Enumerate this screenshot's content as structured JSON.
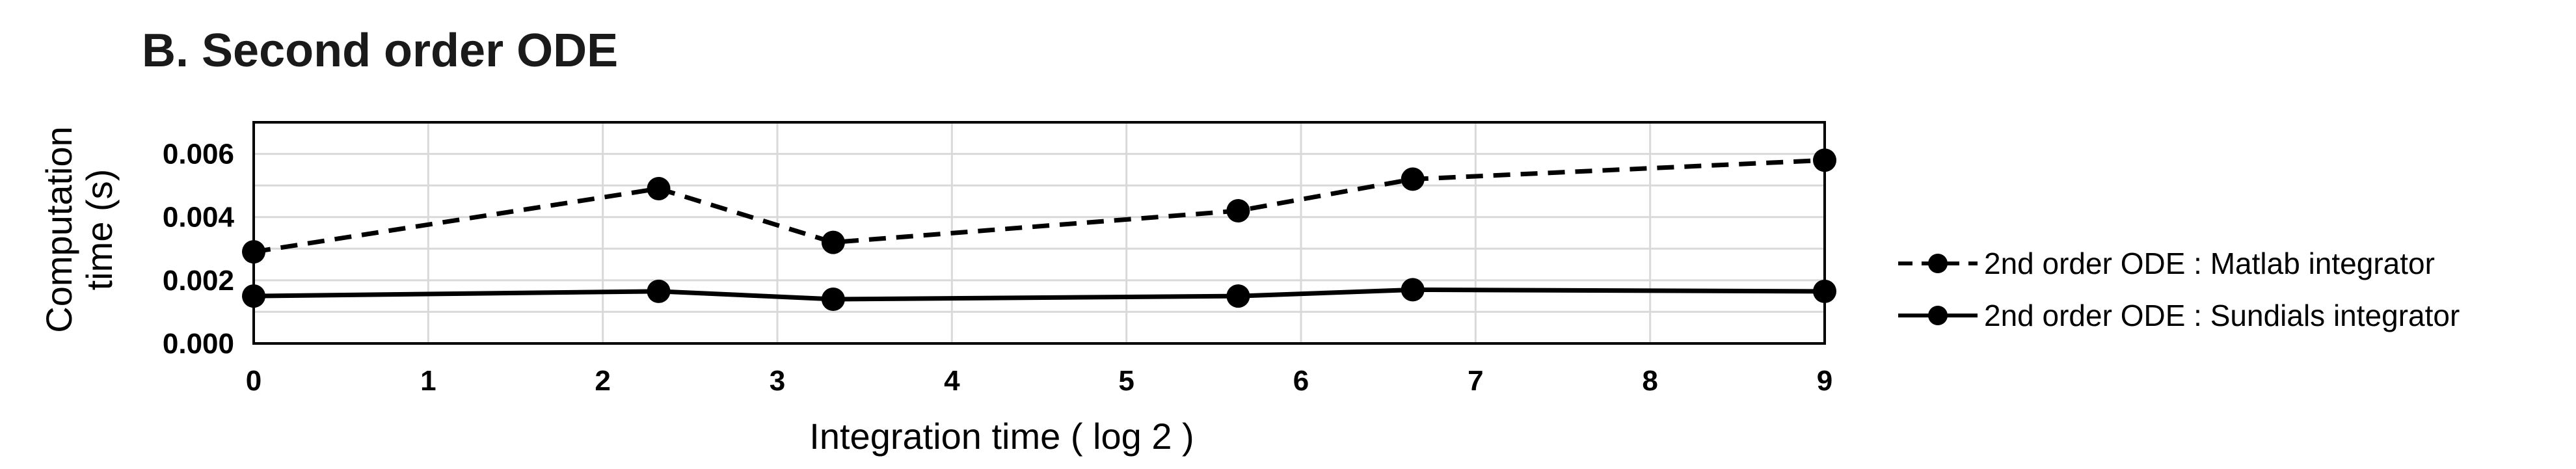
{
  "chart_data": {
    "type": "line",
    "title": "B. Second order ODE",
    "xlabel": "Integration time ( log 2 )",
    "ylabel_lines": [
      "Computation",
      "time (s)"
    ],
    "xlim": [
      0,
      9
    ],
    "ylim": [
      0,
      0.007
    ],
    "x_ticks": [
      "0",
      "1",
      "2",
      "3",
      "4",
      "5",
      "6",
      "7",
      "8",
      "9"
    ],
    "y_ticks": [
      {
        "value": 0,
        "label": "0.000"
      },
      {
        "value": 0.002,
        "label": "0.002"
      },
      {
        "value": 0.004,
        "label": "0.004"
      },
      {
        "value": 0.006,
        "label": "0.006"
      }
    ],
    "grid": true,
    "legend_position": "right",
    "series": [
      {
        "name": "2nd order ODE : Matlab integrator",
        "style": "dashed",
        "color": "#000000",
        "x": [
          0,
          2.32,
          3.32,
          5.64,
          6.64,
          9
        ],
        "y": [
          0.0029,
          0.0049,
          0.0032,
          0.0042,
          0.0052,
          0.0058
        ]
      },
      {
        "name": "2nd order ODE : Sundials integrator",
        "style": "solid",
        "color": "#000000",
        "x": [
          0,
          2.32,
          3.32,
          5.64,
          6.64,
          9
        ],
        "y": [
          0.0015,
          0.00165,
          0.0014,
          0.0015,
          0.0017,
          0.00165
        ]
      }
    ]
  }
}
